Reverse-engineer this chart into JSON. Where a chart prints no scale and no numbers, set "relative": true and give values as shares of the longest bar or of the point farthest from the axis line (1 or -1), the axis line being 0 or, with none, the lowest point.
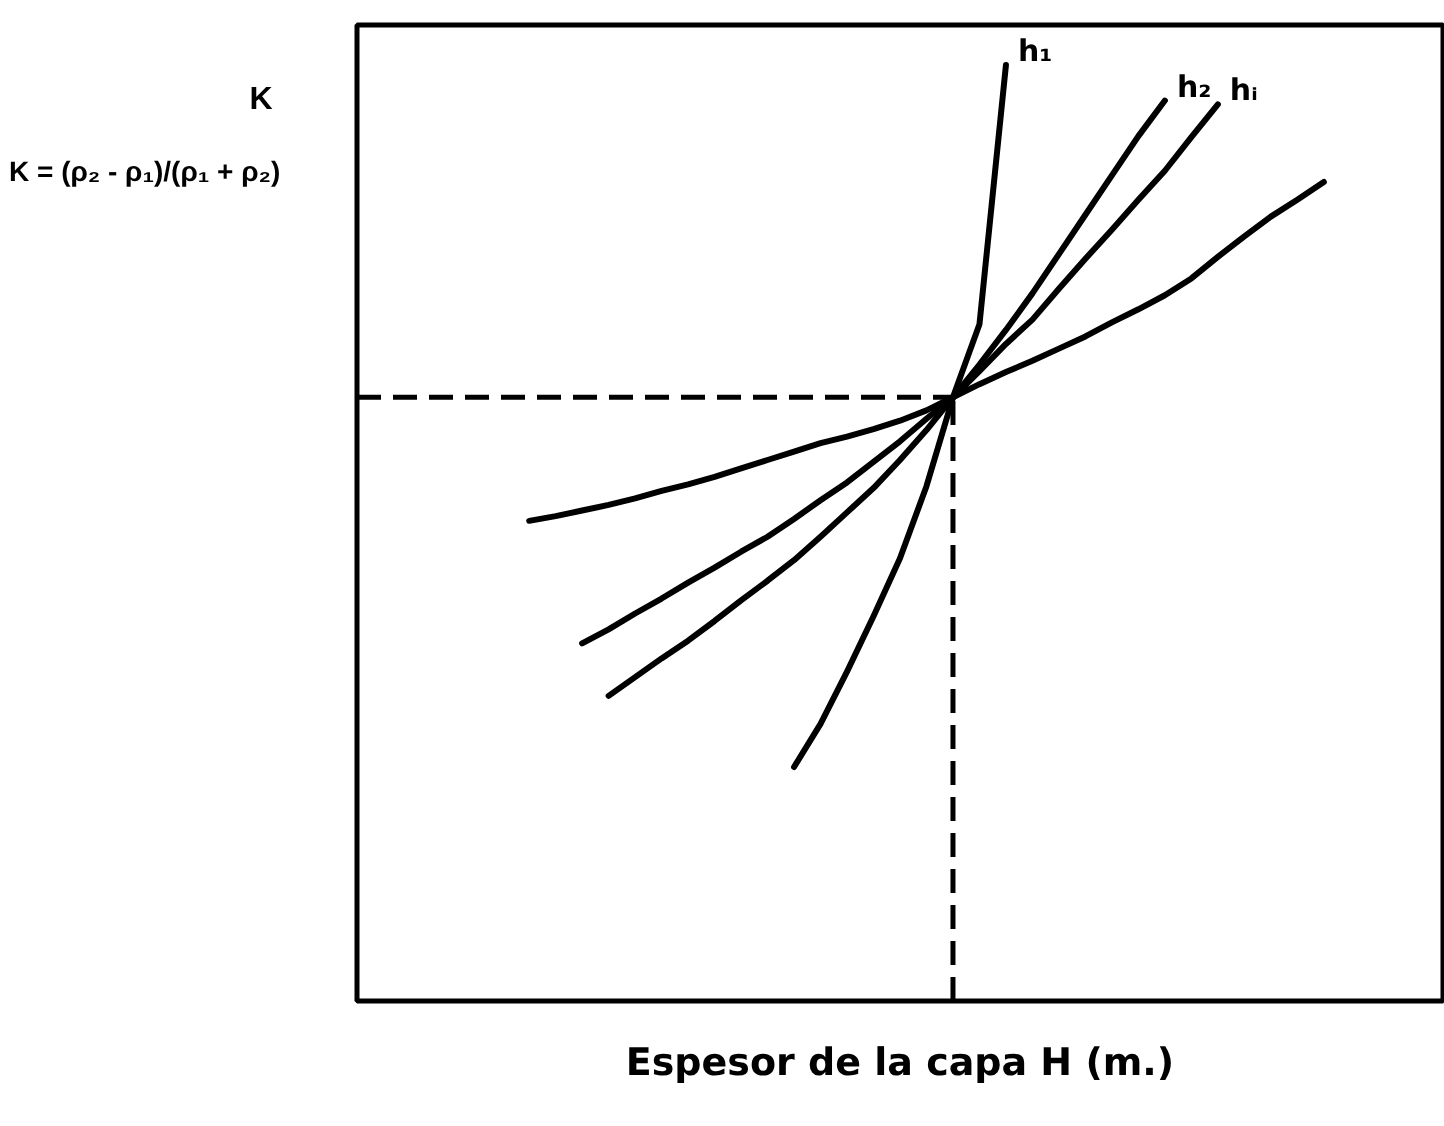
{
  "chart_data": {
    "type": "line",
    "relative": true,
    "xlabel": "Espesor de la capa H (m.)",
    "ylabel": "K",
    "annotations": [
      "K = (ρ₂ - ρ₁)/(ρ₁ + ρ₂)"
    ],
    "categories": [
      null,
      null,
      null,
      null,
      null,
      null,
      null,
      null,
      null,
      null,
      null,
      null,
      null,
      null,
      null,
      null,
      null,
      null,
      null,
      null,
      null,
      null,
      null,
      null,
      null,
      null,
      null,
      null,
      null,
      null,
      null,
      null,
      null,
      null,
      null,
      null,
      null,
      null,
      null,
      null,
      null
    ],
    "series": [
      {
        "name": "h₁",
        "color": "#000000",
        "values": [
          null,
          null,
          null,
          null,
          null,
          null,
          null,
          null,
          null,
          null,
          null,
          null,
          null,
          null,
          null,
          null,
          0.25,
          0.296,
          0.352,
          0.411,
          0.473,
          0.55,
          0.645,
          0.723,
          1.0,
          null,
          null,
          null,
          null,
          null,
          null,
          null,
          null,
          null,
          null,
          null,
          null,
          null,
          null,
          null,
          null
        ]
      },
      {
        "name": "h₂",
        "color": "#000000",
        "values": [
          null,
          null,
          null,
          null,
          null,
          null,
          null,
          null,
          null,
          0.326,
          0.346,
          0.366,
          0.385,
          0.406,
          0.428,
          0.449,
          0.471,
          0.496,
          0.522,
          0.548,
          0.578,
          0.61,
          0.645,
          0.68,
          0.717,
          0.756,
          0.798,
          0.84,
          0.882,
          0.924,
          0.962,
          null,
          null,
          null,
          null,
          null,
          null,
          null,
          null,
          null,
          null
        ]
      },
      {
        "name": "hᵢ",
        "color": "#000000",
        "values": [
          null,
          null,
          null,
          null,
          null,
          null,
          null,
          null,
          0.382,
          0.397,
          0.414,
          0.43,
          0.447,
          0.463,
          0.48,
          0.496,
          0.515,
          0.535,
          0.554,
          0.576,
          0.598,
          0.622,
          0.645,
          0.673,
          0.702,
          0.728,
          0.761,
          0.793,
          0.824,
          0.856,
          0.887,
          0.923,
          0.958,
          null,
          null,
          null,
          null,
          null,
          null,
          null,
          null
        ]
      },
      {
        "color": "#000000",
        "values": [
          null,
          null,
          null,
          null,
          null,
          null,
          0.513,
          0.518,
          0.524,
          0.53,
          0.537,
          0.545,
          0.552,
          0.56,
          0.569,
          0.578,
          0.587,
          0.596,
          0.603,
          0.611,
          0.62,
          0.631,
          0.645,
          0.659,
          0.672,
          0.684,
          0.697,
          0.71,
          0.725,
          0.739,
          0.754,
          0.772,
          0.795,
          0.817,
          0.838,
          0.856,
          0.875,
          null,
          null,
          null,
          null
        ]
      }
    ],
    "ref_lines": [
      {
        "axis": "y",
        "value": 0.645,
        "color": "#000000",
        "line_style": "dashed"
      }
    ]
  }
}
